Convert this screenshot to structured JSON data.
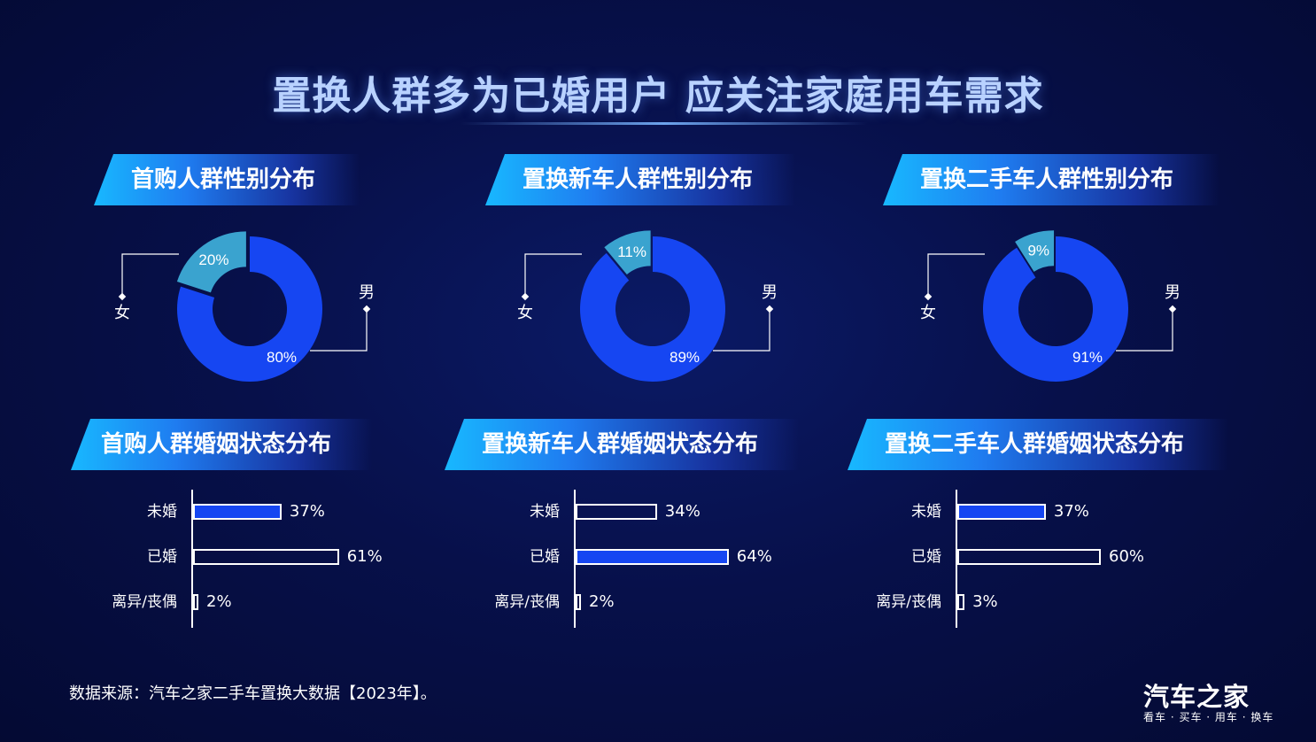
{
  "title": "置换人群多为已婚用户  应关注家庭用车需求",
  "colors": {
    "male": "#1646f2",
    "female": "#3aa3cf",
    "highlight_bar": "#1646f2",
    "background": "#07104a"
  },
  "chart_data": [
    {
      "type": "pie",
      "title": "首购人群性别分布",
      "labels": [
        "男",
        "女"
      ],
      "values": [
        80,
        20
      ],
      "value_labels": [
        "80%",
        "20%"
      ]
    },
    {
      "type": "pie",
      "title": "置换新车人群性别分布",
      "labels": [
        "男",
        "女"
      ],
      "values": [
        89,
        11
      ],
      "value_labels": [
        "89%",
        "11%"
      ]
    },
    {
      "type": "pie",
      "title": "置换二手车人群性别分布",
      "labels": [
        "男",
        "女"
      ],
      "values": [
        91,
        9
      ],
      "value_labels": [
        "91%",
        "9%"
      ]
    },
    {
      "type": "bar",
      "title": "首购人群婚姻状态分布",
      "categories": [
        "未婚",
        "已婚",
        "离异/丧偶"
      ],
      "values": [
        37,
        61,
        2
      ],
      "value_labels": [
        "37%",
        "61%",
        "2%"
      ],
      "highlight_index": 0
    },
    {
      "type": "bar",
      "title": "置换新车人群婚姻状态分布",
      "categories": [
        "未婚",
        "已婚",
        "离异/丧偶"
      ],
      "values": [
        34,
        64,
        2
      ],
      "value_labels": [
        "34%",
        "64%",
        "2%"
      ],
      "highlight_index": 1
    },
    {
      "type": "bar",
      "title": "置换二手车人群婚姻状态分布",
      "categories": [
        "未婚",
        "已婚",
        "离异/丧偶"
      ],
      "values": [
        37,
        60,
        3
      ],
      "value_labels": [
        "37%",
        "60%",
        "3%"
      ],
      "highlight_index": 0
    }
  ],
  "footer": {
    "source": "数据来源：汽车之家二手车置换大数据【2023年】。",
    "logo": "汽车之家",
    "logo_tagline": "看车 · 买车 · 用车 · 换车"
  }
}
